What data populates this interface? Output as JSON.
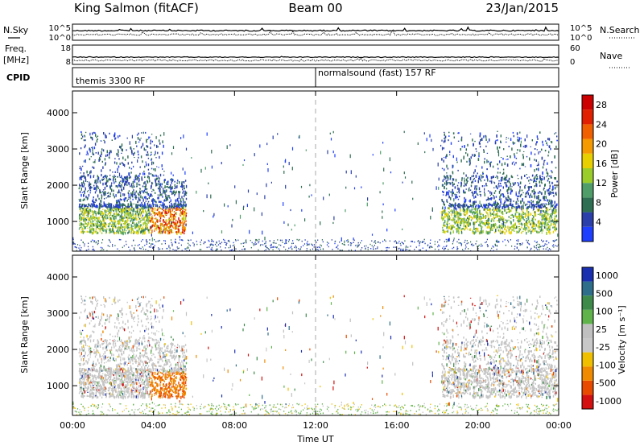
{
  "header": {
    "station": "King Salmon (fitACF)",
    "beam": "Beam 00",
    "date": "23/Jan/2015"
  },
  "top_panels": {
    "nsky_label": "N.Sky",
    "nsearch_label": "N.Search",
    "freq_label": "Freq.",
    "freq_unit": "[MHz]",
    "nave_label": "Nave",
    "cpid_label": "CPID",
    "noise_left_ticks": [
      "10^5",
      "10^0"
    ],
    "noise_right_ticks": [
      "10^5",
      "10^0"
    ],
    "freq_ticks": [
      "18",
      "8"
    ],
    "nave_ticks": [
      "60",
      "0"
    ],
    "cpid_left": "themis 3300 RF",
    "cpid_right": "normalsound (fast) 157 RF"
  },
  "colors": {
    "power": [
      "#1f3fff",
      "#2a3faa",
      "#2e6e52",
      "#4f9e6a",
      "#9acc2a",
      "#e8d000",
      "#f59a00",
      "#f06000",
      "#e02000",
      "#cc0000"
    ],
    "velocity": [
      "#1a2fb0",
      "#2e6e8a",
      "#3d8a4a",
      "#5fb34a",
      "#c0c0c0",
      "#c8c8c8",
      "#f0c000",
      "#f08a00",
      "#e84a00",
      "#d41010"
    ],
    "ground_scatter": "#c4c4c4"
  },
  "chart_data": [
    {
      "type": "heatmap",
      "name": "power",
      "xlabel": "",
      "ylabel": "Slant Range [km]",
      "x_ticks": [
        "00:00",
        "04:00",
        "08:00",
        "12:00",
        "16:00",
        "20:00",
        "00:00"
      ],
      "y_ticks": [
        "1000",
        "2000",
        "3000",
        "4000"
      ],
      "xlim": [
        0,
        24
      ],
      "ylim": [
        180,
        4600
      ],
      "colorbar": {
        "label": "Power [dB]",
        "ticks": [
          "4",
          "8",
          "12",
          "16",
          "20",
          "24",
          "28"
        ],
        "range": [
          0,
          30
        ]
      },
      "regions": [
        {
          "t": [
            0.3,
            5.6
          ],
          "r": [
            600,
            3500
          ],
          "density": "high",
          "dominant_db": 6,
          "core_db": 14
        },
        {
          "t": [
            18.2,
            23.9
          ],
          "r": [
            600,
            3400
          ],
          "density": "high",
          "dominant_db": 6,
          "core_db": 12
        },
        {
          "t": [
            4.0,
            5.7
          ],
          "r": [
            600,
            1300
          ],
          "density": "high",
          "dominant_db": 22,
          "core_db": 26
        },
        {
          "t": [
            0.0,
            24.0
          ],
          "r": [
            200,
            500
          ],
          "density": "sparse",
          "dominant_db": 5
        }
      ]
    },
    {
      "type": "heatmap",
      "name": "velocity",
      "xlabel": "Time UT",
      "ylabel": "Slant Range [km]",
      "x_ticks": [
        "00:00",
        "04:00",
        "08:00",
        "12:00",
        "16:00",
        "20:00",
        "00:00"
      ],
      "y_ticks": [
        "1000",
        "2000",
        "3000",
        "4000"
      ],
      "xlim": [
        0,
        24
      ],
      "ylim": [
        180,
        4600
      ],
      "colorbar": {
        "label": "Velocity [m s⁻¹]",
        "ticks": [
          "1000",
          "500",
          "100",
          "25",
          "-25",
          "-100",
          "-500",
          "-1000"
        ],
        "range": [
          -1000,
          1000
        ]
      },
      "regions": [
        {
          "t": [
            0.3,
            5.6
          ],
          "r": [
            600,
            3500
          ],
          "density": "high",
          "dominant": "ground_scatter"
        },
        {
          "t": [
            4.0,
            5.7
          ],
          "r": [
            600,
            1300
          ],
          "density": "high",
          "dominant_ms": -400
        },
        {
          "t": [
            18.2,
            23.9
          ],
          "r": [
            600,
            3400
          ],
          "density": "high",
          "dominant": "ground_scatter"
        },
        {
          "t": [
            0.0,
            24.0
          ],
          "r": [
            200,
            500
          ],
          "density": "sparse",
          "dominant_ms": 50
        }
      ]
    }
  ]
}
